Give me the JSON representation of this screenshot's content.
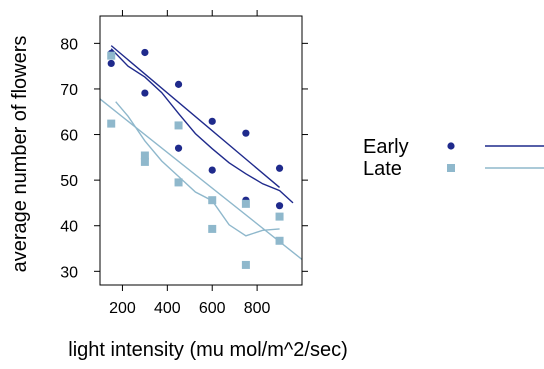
{
  "chart_data": {
    "type": "scatter",
    "title": "",
    "xlabel": "light intensity (mu mol/m^2/sec)",
    "ylabel": "average number of flowers",
    "xlim": [
      100,
      1000
    ],
    "ylim": [
      27,
      86
    ],
    "x_ticks": [
      200,
      400,
      600,
      800
    ],
    "x_tick_labels": [
      "200",
      "400",
      "600",
      "800"
    ],
    "y_ticks": [
      30,
      40,
      50,
      60,
      70,
      80
    ],
    "y_tick_labels": [
      "30",
      "40",
      "50",
      "60",
      "70",
      "80"
    ],
    "grid": false,
    "legend_position": "right",
    "series": [
      {
        "name": "Early",
        "marker": "circle",
        "color": "#1f2a8c",
        "x": [
          150,
          150,
          300,
          300,
          450,
          450,
          600,
          600,
          750,
          750,
          900,
          900
        ],
        "y": [
          77.8,
          75.6,
          78.0,
          69.1,
          71.0,
          57.0,
          62.9,
          52.2,
          60.3,
          45.6,
          52.6,
          44.4
        ],
        "fit_line": {
          "x": [
            150,
            900
          ],
          "y": [
            79.5,
            48.4
          ]
        },
        "smooth_line": {
          "x": [
            150,
            225,
            300,
            375,
            450,
            525,
            600,
            675,
            750,
            825,
            900,
            960
          ],
          "y": [
            78.8,
            75.0,
            72.6,
            69.2,
            64.6,
            60.2,
            56.9,
            53.8,
            51.4,
            49.2,
            47.7,
            45.0
          ]
        }
      },
      {
        "name": "Late",
        "marker": "square",
        "color": "#8fb8cc",
        "x": [
          150,
          150,
          300,
          300,
          450,
          450,
          600,
          600,
          750,
          750,
          900,
          900
        ],
        "y": [
          77.3,
          62.4,
          55.4,
          54.0,
          62.0,
          49.5,
          45.6,
          39.3,
          44.8,
          31.4,
          42.0,
          36.7
        ],
        "fit_line": {
          "x": [
            100,
            1000
          ],
          "y": [
            67.8,
            32.6
          ]
        },
        "smooth_line": {
          "x": [
            170,
            225,
            300,
            375,
            450,
            525,
            600,
            675,
            750,
            825,
            900
          ],
          "y": [
            67.2,
            64.0,
            58.6,
            54.2,
            50.8,
            47.4,
            45.5,
            40.2,
            37.8,
            39.0,
            39.3
          ]
        }
      }
    ]
  }
}
